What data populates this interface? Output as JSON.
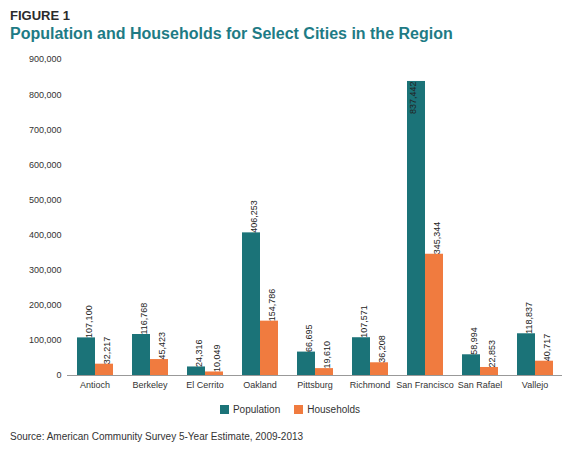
{
  "chart_data": {
    "type": "bar",
    "annotations": [
      "FIGURE 1"
    ],
    "title": "Population and Households for Select Cities in the Region",
    "caption": "Source: American Community Survey 5-Year Estimate, 2009-2013",
    "categories": [
      "Antioch",
      "Berkeley",
      "El Cerrito",
      "Oakland",
      "Pittsburg",
      "Richmond",
      "San Francisco",
      "San Rafael",
      "Vallejo"
    ],
    "series": [
      {
        "name": "Population",
        "color": "#1b7378",
        "values": [
          107100,
          116768,
          24316,
          406253,
          66695,
          107571,
          837442,
          58994,
          118837
        ],
        "value_labels": [
          "107,100",
          "116,768",
          "24,316",
          "406,253",
          "66,695",
          "107,571",
          "837,442",
          "58,994",
          "118,837"
        ]
      },
      {
        "name": "Households",
        "color": "#f07b3f",
        "values": [
          32217,
          45423,
          10049,
          154786,
          19610,
          36208,
          345344,
          22853,
          40717
        ],
        "value_labels": [
          "32,217",
          "45,423",
          "10,049",
          "154,786",
          "19,610",
          "36,208",
          "345,344",
          "22,853",
          "40,717"
        ]
      }
    ],
    "ylim": [
      0,
      900000
    ],
    "yticks": [
      0,
      {
        "value": 100000,
        "label": "100,000"
      },
      {
        "value": 200000,
        "label": "200,000"
      },
      {
        "value": 300000,
        "label": "300,000"
      },
      {
        "value": 400000,
        "label": "400,000"
      },
      {
        "value": 500000,
        "label": "500,000"
      },
      {
        "value": 600000,
        "label": "600,000"
      },
      {
        "value": 700000,
        "label": "700,000"
      },
      {
        "value": 800000,
        "label": "800,000"
      },
      {
        "value": 900000,
        "label": "900,000"
      }
    ],
    "grid": false,
    "legend": "bottom",
    "data_labels": true
  }
}
